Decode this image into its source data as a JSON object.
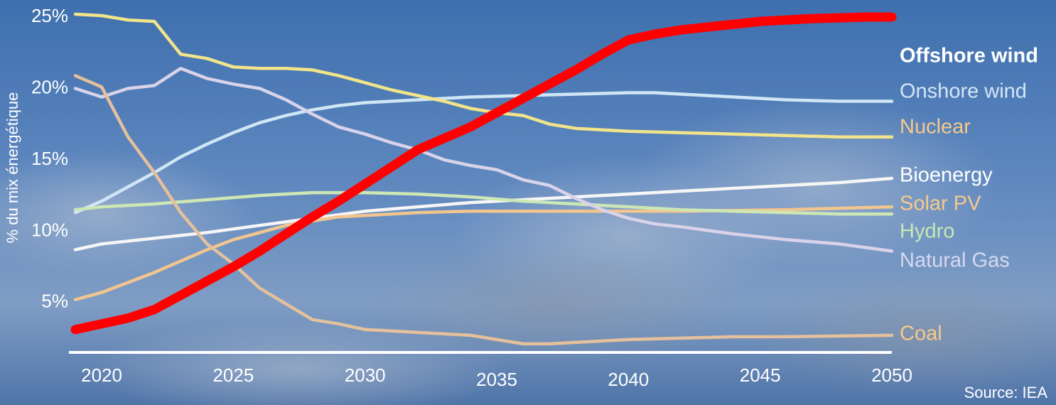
{
  "chart_data": {
    "type": "line",
    "title": "",
    "xlabel": "",
    "ylabel": "% du mix énergétique",
    "source": "Source: IEA",
    "xlim": [
      2019,
      2050
    ],
    "ylim": [
      1,
      25.5
    ],
    "x_ticks": [
      "2020",
      "2025",
      "2030",
      "2035",
      "2040",
      "2045",
      "2050"
    ],
    "y_ticks": [
      "5%",
      "10%",
      "15%",
      "20%",
      "25%"
    ],
    "grid": false,
    "legend": "inline-right",
    "background": [
      "#3e6fae",
      "#5f88bf",
      "#7f9dc4",
      "#4f74a8"
    ],
    "series": [
      {
        "name": "Offshore wind",
        "color": "#ff0000",
        "label_color": "#ffffff",
        "emphasis": true,
        "x": [
          2019,
          2020,
          2021,
          2022,
          2023,
          2024,
          2025,
          2026,
          2027,
          2028,
          2029,
          2030,
          2031,
          2032,
          2033,
          2034,
          2035,
          2036,
          2037,
          2038,
          2039,
          2040,
          2041,
          2042,
          2043,
          2044,
          2045,
          2046,
          2047,
          2048,
          2049,
          2050
        ],
        "y": [
          3.0,
          3.4,
          3.8,
          4.4,
          5.4,
          6.4,
          7.4,
          8.5,
          9.7,
          10.9,
          12.0,
          13.2,
          14.4,
          15.6,
          16.4,
          17.2,
          18.2,
          19.2,
          20.2,
          21.2,
          22.3,
          23.3,
          23.7,
          24.0,
          24.2,
          24.4,
          24.6,
          24.7,
          24.8,
          24.85,
          24.9,
          24.9
        ]
      },
      {
        "name": "Onshore wind",
        "color": "#cfe6f5",
        "label_color": "#d4e6f6",
        "x": [
          2019,
          2020,
          2021,
          2022,
          2023,
          2024,
          2025,
          2026,
          2027,
          2028,
          2029,
          2030,
          2032,
          2034,
          2036,
          2038,
          2040,
          2041,
          2042,
          2044,
          2046,
          2048,
          2050
        ],
        "y": [
          11.2,
          12.0,
          13.0,
          14.0,
          15.1,
          16.0,
          16.8,
          17.5,
          18.0,
          18.4,
          18.7,
          18.9,
          19.1,
          19.3,
          19.4,
          19.5,
          19.6,
          19.6,
          19.5,
          19.3,
          19.1,
          19.0,
          19.0
        ]
      },
      {
        "name": "Nuclear",
        "color": "#f2e48a",
        "label_color": "#f7c98a",
        "x": [
          2019,
          2020,
          2021,
          2022,
          2023,
          2024,
          2025,
          2026,
          2027,
          2028,
          2029,
          2030,
          2031,
          2032,
          2033,
          2034,
          2035,
          2036,
          2037,
          2038,
          2039,
          2040,
          2042,
          2044,
          2046,
          2048,
          2050
        ],
        "y": [
          25.1,
          25.0,
          24.7,
          24.6,
          22.3,
          22.0,
          21.4,
          21.3,
          21.3,
          21.2,
          20.8,
          20.3,
          19.8,
          19.4,
          19.0,
          18.5,
          18.2,
          18.0,
          17.4,
          17.1,
          17.0,
          16.9,
          16.8,
          16.7,
          16.6,
          16.5,
          16.5
        ]
      },
      {
        "name": "Bioenergy",
        "color": "#f6f6f6",
        "label_color": "#ffffff",
        "x": [
          2019,
          2020,
          2022,
          2024,
          2026,
          2028,
          2030,
          2032,
          2034,
          2036,
          2038,
          2040,
          2042,
          2044,
          2046,
          2048,
          2050
        ],
        "y": [
          8.6,
          9.0,
          9.4,
          9.8,
          10.3,
          10.8,
          11.3,
          11.6,
          11.9,
          12.1,
          12.3,
          12.5,
          12.7,
          12.9,
          13.1,
          13.3,
          13.6
        ]
      },
      {
        "name": "Solar PV",
        "color": "#f2c58e",
        "label_color": "#f7c98a",
        "x": [
          2019,
          2020,
          2021,
          2022,
          2023,
          2024,
          2025,
          2026,
          2027,
          2028,
          2029,
          2030,
          2032,
          2034,
          2036,
          2038,
          2040,
          2042,
          2044,
          2046,
          2048,
          2050
        ],
        "y": [
          5.1,
          5.6,
          6.3,
          7.0,
          7.8,
          8.6,
          9.3,
          9.8,
          10.3,
          10.6,
          10.9,
          11.0,
          11.2,
          11.3,
          11.3,
          11.3,
          11.3,
          11.3,
          11.35,
          11.4,
          11.5,
          11.6
        ]
      },
      {
        "name": "Hydro",
        "color": "#cde7b4",
        "label_color": "#c6e8b2",
        "x": [
          2019,
          2020,
          2022,
          2024,
          2026,
          2028,
          2030,
          2032,
          2034,
          2036,
          2038,
          2040,
          2042,
          2044,
          2046,
          2048,
          2050
        ],
        "y": [
          11.4,
          11.6,
          11.8,
          12.1,
          12.4,
          12.6,
          12.6,
          12.5,
          12.3,
          12.0,
          11.8,
          11.6,
          11.4,
          11.3,
          11.2,
          11.1,
          11.1
        ]
      },
      {
        "name": "Natural Gas",
        "color": "#d9d3ea",
        "label_color": "#d8d8f0",
        "x": [
          2019,
          2020,
          2021,
          2022,
          2023,
          2024,
          2025,
          2026,
          2027,
          2028,
          2029,
          2030,
          2031,
          2032,
          2033,
          2034,
          2035,
          2036,
          2037,
          2038,
          2039,
          2040,
          2041,
          2042,
          2044,
          2046,
          2048,
          2050
        ],
        "y": [
          19.9,
          19.3,
          19.9,
          20.1,
          21.3,
          20.6,
          20.2,
          19.9,
          19.1,
          18.1,
          17.2,
          16.7,
          16.1,
          15.6,
          14.9,
          14.5,
          14.2,
          13.5,
          13.1,
          12.2,
          11.4,
          10.8,
          10.4,
          10.2,
          9.7,
          9.3,
          9.0,
          8.5
        ]
      },
      {
        "name": "Coal",
        "color": "#e5c09c",
        "label_color": "#f7c98a",
        "x": [
          2019,
          2020,
          2021,
          2022,
          2023,
          2024,
          2025,
          2026,
          2027,
          2028,
          2029,
          2030,
          2031,
          2032,
          2033,
          2034,
          2035,
          2036,
          2037,
          2038,
          2040,
          2042,
          2044,
          2046,
          2048,
          2050
        ],
        "y": [
          20.8,
          20.0,
          16.5,
          14.0,
          11.2,
          9.0,
          7.6,
          5.9,
          4.8,
          3.7,
          3.4,
          3.0,
          2.9,
          2.8,
          2.7,
          2.6,
          2.3,
          2.0,
          2.0,
          2.1,
          2.3,
          2.4,
          2.5,
          2.5,
          2.55,
          2.6
        ]
      }
    ]
  }
}
